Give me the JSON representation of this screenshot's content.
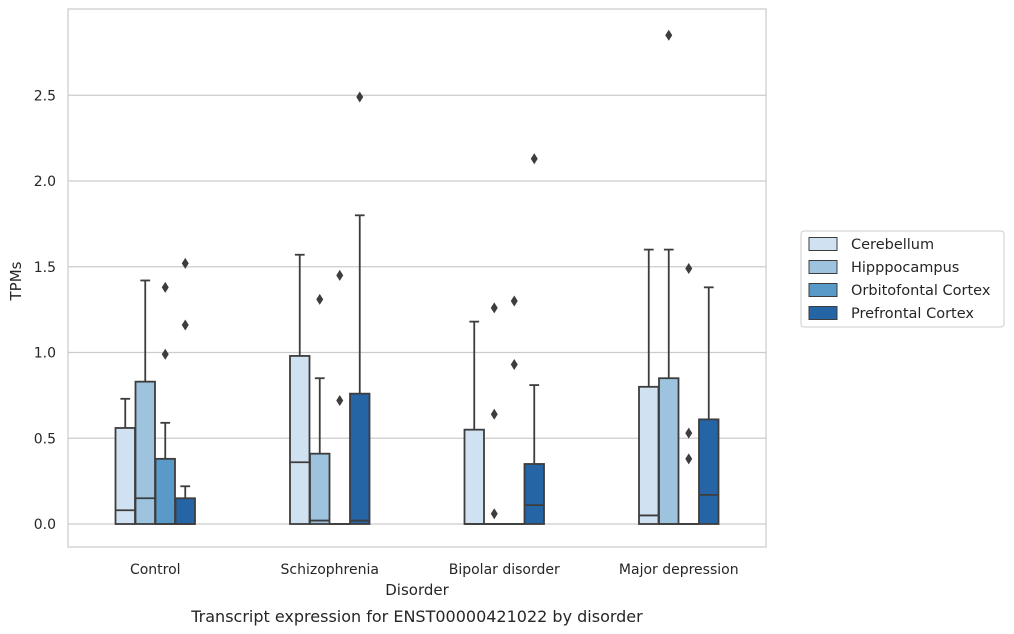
{
  "caption": "Transcript expression for ENST00000421022 by disorder",
  "chart_data": {
    "type": "box",
    "xlabel": "Disorder",
    "ylabel": "TPMs",
    "categories": [
      "Control",
      "Schizophrenia",
      "Bipolar disorder",
      "Major depression"
    ],
    "ylim": [
      -0.14,
      2.99
    ],
    "yticks": [
      "0.0",
      "0.5",
      "1.0",
      "1.5",
      "2.0",
      "2.5"
    ],
    "grid": true,
    "legend_position": "right",
    "series": [
      {
        "name": "Cerebellum",
        "color": "#d0e1f1",
        "boxes": [
          {
            "min": 0,
            "q1": 0,
            "median": 0.08,
            "q3": 0.56,
            "max": 0.73,
            "outliers": []
          },
          {
            "min": 0,
            "q1": 0,
            "median": 0.36,
            "q3": 0.98,
            "max": 1.57,
            "outliers": []
          },
          {
            "min": 0,
            "q1": 0,
            "median": 0,
            "q3": 0.55,
            "max": 1.18,
            "outliers": []
          },
          {
            "min": 0,
            "q1": 0,
            "median": 0.05,
            "q3": 0.8,
            "max": 1.6,
            "outliers": []
          }
        ]
      },
      {
        "name": "Hipppocampus",
        "color": "#9dc3de",
        "boxes": [
          {
            "min": 0,
            "q1": 0,
            "median": 0.15,
            "q3": 0.83,
            "max": 1.42,
            "outliers": []
          },
          {
            "min": 0,
            "q1": 0,
            "median": 0.02,
            "q3": 0.41,
            "max": 0.85,
            "outliers": [
              1.31
            ]
          },
          {
            "min": 0,
            "q1": 0,
            "median": 0,
            "q3": 0,
            "max": 0,
            "outliers": [
              0.06,
              0.64,
              1.26
            ]
          },
          {
            "min": 0,
            "q1": 0,
            "median": 0,
            "q3": 0.85,
            "max": 1.6,
            "outliers": [
              2.85
            ]
          }
        ]
      },
      {
        "name": "Orbitofontal Cortex",
        "color": "#5a9ac8",
        "boxes": [
          {
            "min": 0,
            "q1": 0,
            "median": 0,
            "q3": 0.38,
            "max": 0.59,
            "outliers": [
              0.99,
              1.38
            ]
          },
          {
            "min": 0,
            "q1": 0,
            "median": 0,
            "q3": 0,
            "max": 0,
            "outliers": [
              0.72,
              1.45
            ]
          },
          {
            "min": 0,
            "q1": 0,
            "median": 0,
            "q3": 0,
            "max": 0,
            "outliers": [
              0.93,
              1.3
            ]
          },
          {
            "min": 0,
            "q1": 0,
            "median": 0,
            "q3": 0,
            "max": 0,
            "outliers": [
              0.38,
              0.53,
              1.49
            ]
          }
        ]
      },
      {
        "name": "Prefrontal Cortex",
        "color": "#2565a6",
        "boxes": [
          {
            "min": 0,
            "q1": 0,
            "median": 0,
            "q3": 0.15,
            "max": 0.22,
            "outliers": [
              1.16,
              1.52
            ]
          },
          {
            "min": 0,
            "q1": 0,
            "median": 0.02,
            "q3": 0.76,
            "max": 1.8,
            "outliers": [
              2.49
            ]
          },
          {
            "min": 0,
            "q1": 0,
            "median": 0.11,
            "q3": 0.35,
            "max": 0.81,
            "outliers": [
              2.13
            ]
          },
          {
            "min": 0,
            "q1": 0,
            "median": 0.17,
            "q3": 0.61,
            "max": 1.38,
            "outliers": []
          }
        ]
      }
    ]
  }
}
